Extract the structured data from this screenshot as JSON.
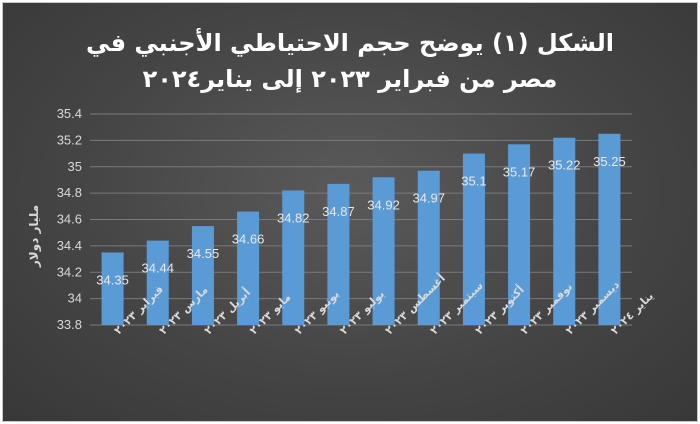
{
  "chart_data": {
    "type": "bar",
    "title_line1": "الشكل (١) يوضح حجم الاحتياطي الأجنبي في",
    "title_line2": "مصر من فبراير ٢٠٢٣ إلى يناير٢٠٢٤",
    "ylabel": "مليار دولار",
    "xlabel": "",
    "ylim": [
      33.8,
      35.4
    ],
    "yticks": [
      "33.8",
      "34",
      "34.2",
      "34.4",
      "34.6",
      "34.8",
      "35",
      "35.2",
      "35.4"
    ],
    "grid": true,
    "legend": "none",
    "categories": [
      "فبراير ٢٠٢٣",
      "مارس ٢٠٢٣",
      "أبريل ٢٠٢٣",
      "مايو ٢٠٢٣",
      "يونيو ٢٠٢٣",
      "يوليو ٢٠٢٣",
      "أغسطس ٢٠٢٣",
      "سبتمبر ٢٠٢٣",
      "أكتوبر ٢٠٢٣",
      "نوفمبر ٢٠٢٣",
      "ديسمبر ٢٠٢٣",
      "يناير ٢٠٢٤"
    ],
    "values": [
      34.35,
      34.44,
      34.55,
      34.66,
      34.82,
      34.87,
      34.92,
      34.97,
      35.1,
      35.17,
      35.22,
      35.25
    ],
    "data_labels": [
      "34.35",
      "34.44",
      "34.55",
      "34.66",
      "34.82",
      "34.87",
      "34.92",
      "34.97",
      "35.1",
      "35.17",
      "35.22",
      "35.25"
    ],
    "colors": {
      "bar": "#5b9bd5",
      "grid": "#7a7a7a",
      "text": "#d9d9d9",
      "title": "#ffffff"
    }
  }
}
